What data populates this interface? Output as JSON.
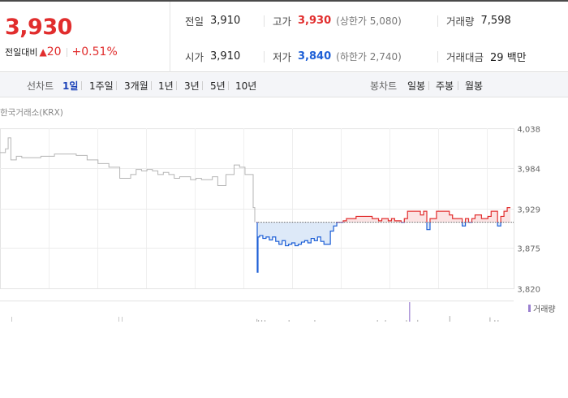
{
  "summary": {
    "current_price": "3,930",
    "change_label": "전일대비",
    "change_direction_icon": "up-triangle-icon",
    "change_value": "20",
    "change_rate": "+0.51%",
    "prev_close_label": "전일",
    "prev_close": "3,910",
    "high_label": "고가",
    "high": "3,930",
    "upper_limit_label": "(상한가 5,080)",
    "volume_label": "거래량",
    "volume": "7,598",
    "open_label": "시가",
    "open": "3,910",
    "low_label": "저가",
    "low": "3,840",
    "lower_limit_label": "(하한가 2,740)",
    "amount_label": "거래대금",
    "amount": "29 백만"
  },
  "period_bar": {
    "line_label": "선차트",
    "line_items": [
      "1일",
      "1주일",
      "3개월",
      "1년",
      "3년",
      "5년",
      "10년"
    ],
    "active": "1일",
    "candle_label": "봉차트",
    "candle_items": [
      "일봉",
      "주봉",
      "월봉"
    ]
  },
  "chart": {
    "source": "한국거래소(KRX)",
    "legend": "거래량"
  },
  "colors": {
    "up": "#e12d2d",
    "down": "#1d5fd6",
    "up_fill": "#fbe3e3",
    "down_fill": "#dde9f8"
  },
  "chart_data": {
    "type": "line",
    "x_unit": "minutes since market open (09:00)",
    "ylim": [
      3820,
      4038
    ],
    "yticks": [
      "4,038",
      "3,984",
      "3,929",
      "3,875",
      "3,820"
    ],
    "baseline": 3910,
    "grid": true,
    "today_start_minute": 0,
    "prev_session": {
      "x": [
        0,
        4,
        6,
        8,
        12,
        16,
        24,
        30,
        36,
        40,
        44,
        48,
        56,
        64,
        72,
        80,
        88,
        96,
        100,
        104,
        108,
        112,
        116,
        120,
        124,
        128,
        132,
        136,
        140,
        144,
        148,
        152,
        156,
        160,
        166,
        172,
        176,
        180,
        186
      ],
      "y": [
        4005,
        4010,
        4025,
        3995,
        4000,
        3998,
        3998,
        4000,
        4000,
        4003,
        4003,
        4003,
        4001,
        3995,
        3990,
        3985,
        3970,
        3975,
        3982,
        3980,
        3982,
        3980,
        3975,
        3978,
        3975,
        3970,
        3972,
        3972,
        3968,
        3970,
        3968,
        3968,
        3972,
        3960,
        3975,
        3988,
        3985,
        3975,
        3930
      ]
    },
    "today": {
      "x": [
        0,
        1,
        2,
        4,
        8,
        12,
        16,
        20,
        24,
        28,
        32,
        36,
        40,
        44,
        48,
        52,
        56,
        60,
        64,
        68,
        72,
        76,
        80,
        84,
        88,
        92,
        96,
        100,
        104,
        108,
        112,
        116,
        120,
        124,
        128,
        132,
        136,
        140,
        144,
        148,
        152,
        156,
        160,
        164,
        168,
        172,
        176,
        180,
        184,
        188,
        192,
        196,
        200,
        204,
        208,
        212,
        216,
        220,
        224,
        228,
        232,
        236,
        240,
        244,
        248,
        252,
        256,
        260,
        264,
        268,
        272,
        276,
        280,
        284,
        288,
        292,
        296,
        300,
        304,
        308,
        312,
        316
      ],
      "y": [
        3910,
        3842,
        3890,
        3892,
        3888,
        3890,
        3886,
        3890,
        3884,
        3880,
        3885,
        3878,
        3880,
        3882,
        3878,
        3880,
        3883,
        3885,
        3882,
        3888,
        3885,
        3890,
        3884,
        3880,
        3880,
        3898,
        3905,
        3910,
        3910,
        3912,
        3915,
        3915,
        3915,
        3918,
        3918,
        3918,
        3918,
        3918,
        3915,
        3915,
        3912,
        3915,
        3915,
        3912,
        3915,
        3912,
        3912,
        3910,
        3915,
        3925,
        3925,
        3925,
        3925,
        3920,
        3925,
        3900,
        3915,
        3915,
        3925,
        3925,
        3925,
        3925,
        3920,
        3915,
        3915,
        3915,
        3905,
        3915,
        3910,
        3915,
        3920,
        3920,
        3915,
        3915,
        3918,
        3925,
        3925,
        3905,
        3918,
        3925,
        3930,
        3930
      ]
    },
    "volume": {
      "x": [
        0,
        2,
        6,
        10,
        40,
        72,
        150,
        160,
        186,
        190,
        200,
        240,
        290,
        296,
        300
      ],
      "v": [
        120,
        60,
        40,
        30,
        20,
        25,
        30,
        35,
        40,
        900,
        80,
        260,
        200,
        60,
        70
      ]
    }
  }
}
